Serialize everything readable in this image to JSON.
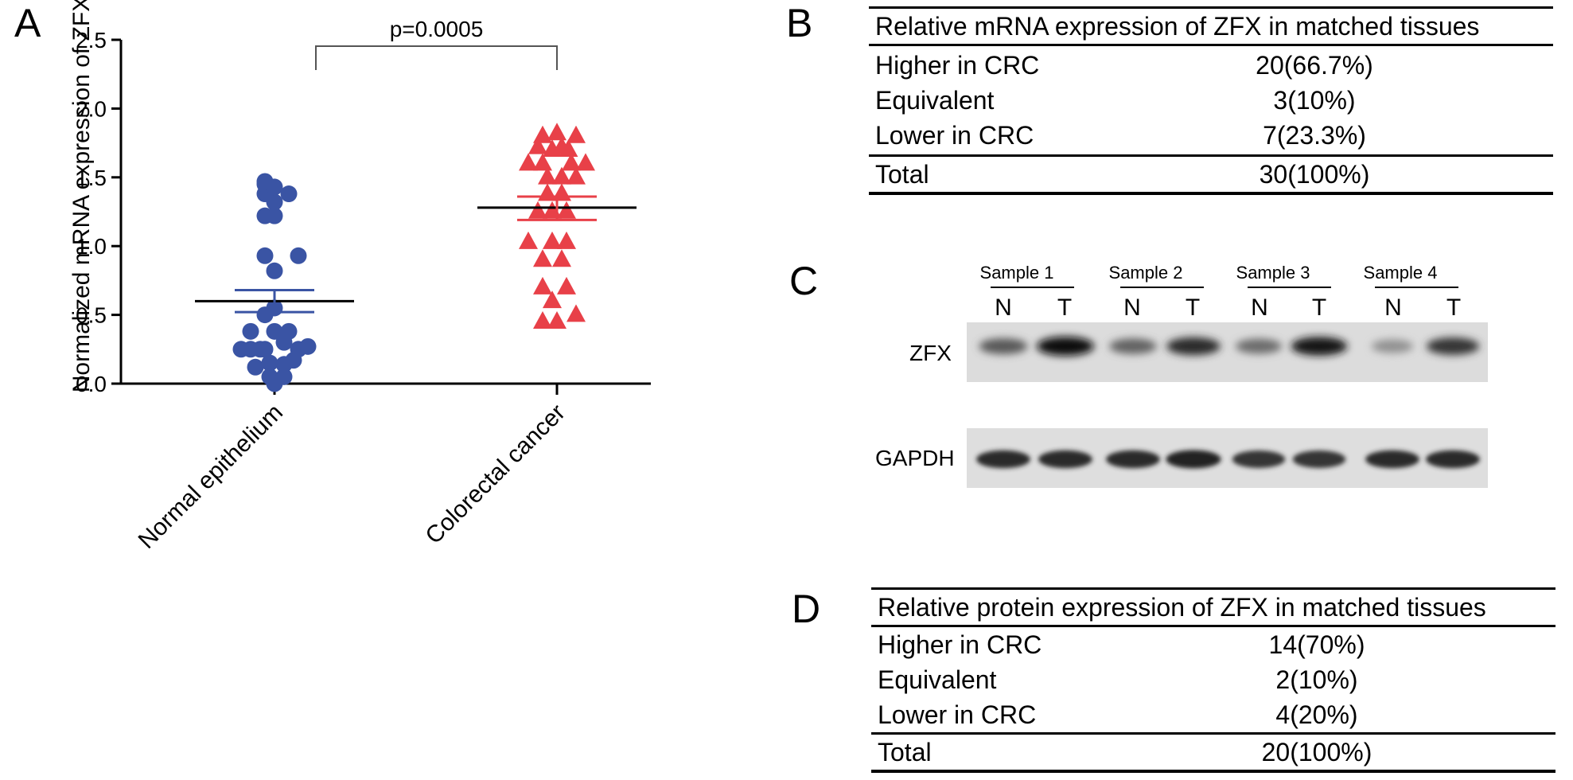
{
  "panels": {
    "a": "A",
    "b": "B",
    "c": "C",
    "d": "D"
  },
  "chart_data": {
    "type": "scatter",
    "ylabel": "Normalized  mRNA expression of  ZFX",
    "ylim": [
      0,
      2.5
    ],
    "yticks": [
      "0.0",
      "0.5",
      "1.0",
      "1.5",
      "2.0",
      "2.5"
    ],
    "categories": [
      "Normal epithelium",
      "Colorectal cancer"
    ],
    "annotation": "p=0.0005",
    "series": [
      {
        "name": "Normal epithelium",
        "color": "#3a54a4",
        "marker": "circle",
        "mean": 0.6,
        "sem": [
          0.52,
          0.68
        ],
        "points": [
          [
            -0.35,
            0.25
          ],
          [
            -0.25,
            0.25
          ],
          [
            -0.15,
            0.25
          ],
          [
            0.25,
            0.25
          ],
          [
            0.35,
            0.27
          ],
          [
            -0.25,
            0.38
          ],
          [
            0.0,
            0.38
          ],
          [
            0.15,
            0.38
          ],
          [
            -0.1,
            0.5
          ],
          [
            0.0,
            0.55
          ],
          [
            0.0,
            0.82
          ],
          [
            -0.1,
            0.93
          ],
          [
            0.25,
            0.93
          ],
          [
            -0.1,
            1.22
          ],
          [
            0.0,
            1.22
          ],
          [
            0.0,
            1.32
          ],
          [
            -0.1,
            1.38
          ],
          [
            0.15,
            1.38
          ],
          [
            -0.1,
            1.45
          ],
          [
            0.0,
            1.43
          ],
          [
            -0.1,
            1.47
          ],
          [
            -0.2,
            0.12
          ],
          [
            -0.05,
            0.15
          ],
          [
            0.1,
            0.14
          ],
          [
            0.2,
            0.17
          ],
          [
            -0.05,
            0.05
          ],
          [
            0.1,
            0.05
          ],
          [
            0.0,
            0.0
          ],
          [
            -0.1,
            0.25
          ],
          [
            0.1,
            0.3
          ]
        ]
      },
      {
        "name": "Colorectal cancer",
        "color": "#e84048",
        "marker": "triangle",
        "mean": 1.28,
        "sem": [
          1.19,
          1.36
        ],
        "points": [
          [
            -0.3,
            1.6
          ],
          [
            -0.15,
            1.6
          ],
          [
            0.15,
            1.6
          ],
          [
            0.3,
            1.6
          ],
          [
            -0.2,
            1.72
          ],
          [
            0.0,
            1.82
          ],
          [
            -0.15,
            1.8
          ],
          [
            0.2,
            1.8
          ],
          [
            -0.05,
            1.7
          ],
          [
            0.05,
            1.72
          ],
          [
            0.12,
            1.7
          ],
          [
            -0.1,
            1.5
          ],
          [
            0.05,
            1.5
          ],
          [
            0.2,
            1.5
          ],
          [
            -0.1,
            1.38
          ],
          [
            0.05,
            1.38
          ],
          [
            -0.2,
            1.25
          ],
          [
            -0.05,
            1.25
          ],
          [
            0.1,
            1.25
          ],
          [
            -0.3,
            1.03
          ],
          [
            -0.05,
            1.03
          ],
          [
            0.1,
            1.03
          ],
          [
            -0.15,
            0.9
          ],
          [
            0.05,
            0.9
          ],
          [
            -0.15,
            0.7
          ],
          [
            0.1,
            0.7
          ],
          [
            -0.05,
            0.6
          ],
          [
            -0.15,
            0.45
          ],
          [
            0.0,
            0.45
          ],
          [
            0.2,
            0.5
          ]
        ]
      }
    ]
  },
  "table_b": {
    "header": "Relative mRNA expression of ZFX in matched tissues",
    "rows": [
      {
        "label": "Higher in CRC",
        "value": "20(66.7%)"
      },
      {
        "label": "Equivalent",
        "value": "3(10%)"
      },
      {
        "label": "Lower in CRC",
        "value": "7(23.3%)"
      },
      {
        "label": "Total",
        "value": "30(100%)"
      }
    ]
  },
  "blot": {
    "samples": [
      "Sample 1",
      "Sample 2",
      "Sample 3",
      "Sample 4"
    ],
    "lanes": [
      "N",
      "T",
      "N",
      "T",
      "N",
      "T",
      "N",
      "T"
    ],
    "rows": [
      "ZFX",
      "GAPDH"
    ],
    "zfx_intensity": [
      0.6,
      1.0,
      0.55,
      0.85,
      0.5,
      0.95,
      0.3,
      0.8
    ],
    "gapdh_intensity": [
      0.85,
      0.85,
      0.85,
      0.9,
      0.8,
      0.8,
      0.85,
      0.85
    ]
  },
  "table_d": {
    "header": "Relative protein expression of ZFX in matched tissues",
    "rows": [
      {
        "label": "Higher in CRC",
        "value": "14(70%)"
      },
      {
        "label": "Equivalent",
        "value": "2(10%)"
      },
      {
        "label": "Lower in CRC",
        "value": "4(20%)"
      },
      {
        "label": "Total",
        "value": "20(100%)"
      }
    ]
  }
}
